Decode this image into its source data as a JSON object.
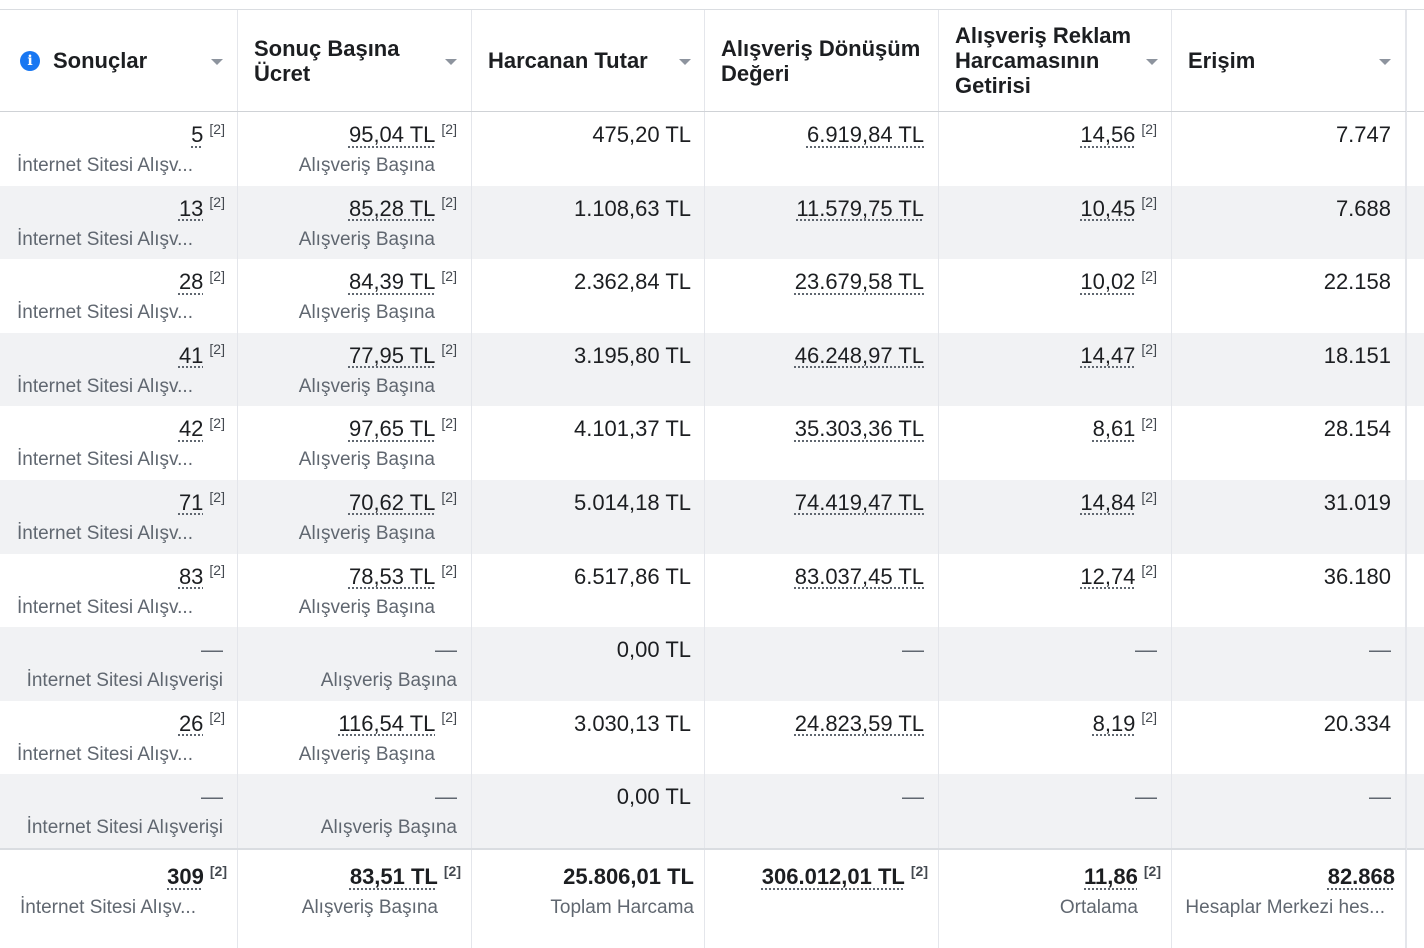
{
  "columns": [
    {
      "label": "Sonuçlar",
      "has_info": true
    },
    {
      "label": "Sonuç Başına Ücret"
    },
    {
      "label": "Harcanan Tutar"
    },
    {
      "label": "Alışveriş Dönüşüm Değeri"
    },
    {
      "label": "Alışveriş Reklam Harcamasının Getirisi"
    },
    {
      "label": "Erişim"
    }
  ],
  "footnote_marker": "[2]",
  "rows": [
    {
      "results": "5",
      "results_sub": "İnternet Sitesi Alışv...",
      "cpr": "95,04 TL",
      "cpr_sub": "Alışveriş Başına",
      "spent": "475,20 TL",
      "value": "6.919,84 TL",
      "roas": "14,56",
      "reach": "7.747"
    },
    {
      "results": "13",
      "results_sub": "İnternet Sitesi Alışv...",
      "cpr": "85,28 TL",
      "cpr_sub": "Alışveriş Başına",
      "spent": "1.108,63 TL",
      "value": "11.579,75 TL",
      "roas": "10,45",
      "reach": "7.688"
    },
    {
      "results": "28",
      "results_sub": "İnternet Sitesi Alışv...",
      "cpr": "84,39 TL",
      "cpr_sub": "Alışveriş Başına",
      "spent": "2.362,84 TL",
      "value": "23.679,58 TL",
      "roas": "10,02",
      "reach": "22.158"
    },
    {
      "results": "41",
      "results_sub": "İnternet Sitesi Alışv...",
      "cpr": "77,95 TL",
      "cpr_sub": "Alışveriş Başına",
      "spent": "3.195,80 TL",
      "value": "46.248,97 TL",
      "roas": "14,47",
      "reach": "18.151"
    },
    {
      "results": "42",
      "results_sub": "İnternet Sitesi Alışv...",
      "cpr": "97,65 TL",
      "cpr_sub": "Alışveriş Başına",
      "spent": "4.101,37 TL",
      "value": "35.303,36 TL",
      "roas": "8,61",
      "reach": "28.154"
    },
    {
      "results": "71",
      "results_sub": "İnternet Sitesi Alışv...",
      "cpr": "70,62 TL",
      "cpr_sub": "Alışveriş Başına",
      "spent": "5.014,18 TL",
      "value": "74.419,47 TL",
      "roas": "14,84",
      "reach": "31.019"
    },
    {
      "results": "83",
      "results_sub": "İnternet Sitesi Alışv...",
      "cpr": "78,53 TL",
      "cpr_sub": "Alışveriş Başına",
      "spent": "6.517,86 TL",
      "value": "83.037,45 TL",
      "roas": "12,74",
      "reach": "36.180"
    },
    {
      "results": "—",
      "results_sub": "İnternet Sitesi Alışverişi",
      "cpr": "—",
      "cpr_sub": "Alışveriş Başına",
      "spent": "0,00 TL",
      "value": "—",
      "roas": "—",
      "reach": "—"
    },
    {
      "results": "26",
      "results_sub": "İnternet Sitesi Alışv...",
      "cpr": "116,54 TL",
      "cpr_sub": "Alışveriş Başına",
      "spent": "3.030,13 TL",
      "value": "24.823,59 TL",
      "roas": "8,19",
      "reach": "20.334"
    },
    {
      "results": "—",
      "results_sub": "İnternet Sitesi Alışverişi",
      "cpr": "—",
      "cpr_sub": "Alışveriş Başına",
      "spent": "0,00 TL",
      "value": "—",
      "roas": "—",
      "reach": "—"
    }
  ],
  "totals": {
    "results": "309",
    "results_sub": "İnternet Sitesi Alışv...",
    "cpr": "83,51 TL",
    "cpr_sub": "Alışveriş Başına",
    "spent": "25.806,01 TL",
    "spent_sub": "Toplam Harcama",
    "value": "306.012,01 TL",
    "roas": "11,86",
    "roas_sub": "Ortalama",
    "reach": "82.868",
    "reach_sub": "Hesaplar Merkezi hes..."
  }
}
